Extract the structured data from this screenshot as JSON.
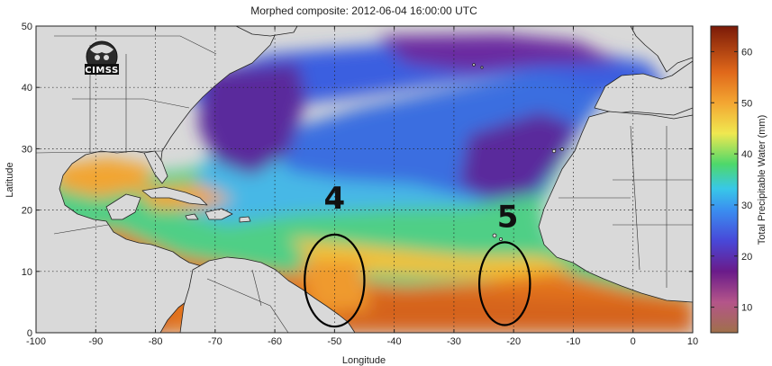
{
  "chart_data": {
    "type": "heatmap",
    "title": "Morphed composite: 2012-06-04 16:00:00 UTC",
    "xlabel": "Longitude",
    "ylabel": "Latitude",
    "xlim": [
      -100,
      10
    ],
    "ylim": [
      0,
      50
    ],
    "x_ticks": [
      -100,
      -90,
      -80,
      -70,
      -60,
      -50,
      -40,
      -30,
      -20,
      -10,
      0,
      10
    ],
    "y_ticks": [
      0,
      10,
      20,
      30,
      40,
      50
    ],
    "grid": true,
    "colorbar": {
      "label": "Total Precipitable Water (mm)",
      "range": [
        5,
        65
      ],
      "ticks": [
        10,
        20,
        30,
        40,
        50,
        60
      ]
    },
    "annotations": [
      {
        "text": "4",
        "lon": -50,
        "lat": 22
      },
      {
        "text": "5",
        "lon": -21,
        "lat": 19
      }
    ],
    "ellipses": [
      {
        "name": "4",
        "center_lon": -50,
        "center_lat": 8.5,
        "span_lon": 10,
        "span_lat": 15
      },
      {
        "name": "5",
        "center_lon": -21.5,
        "center_lat": 8,
        "span_lon": 8.5,
        "span_lat": 13.5
      }
    ],
    "logo_text": "CIMSS"
  }
}
